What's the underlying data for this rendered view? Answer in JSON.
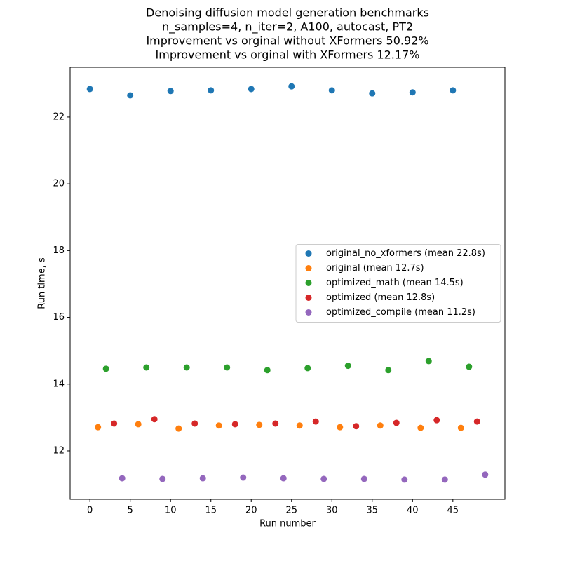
{
  "chart_data": {
    "type": "scatter",
    "title": [
      "Denoising diffusion model generation benchmarks",
      "n_samples=4, n_iter=2, A100, autocast, PT2",
      "Improvement vs orginal without XFormers 50.92%",
      "Improvement vs orginal with XFormers 12.17%"
    ],
    "x_label": "Run number",
    "y_label": "Run time, s",
    "xlim": [
      -2.45,
      51.45
    ],
    "ylim": [
      10.55,
      23.49
    ],
    "xticks": [
      0,
      5,
      10,
      15,
      20,
      25,
      30,
      35,
      40,
      45
    ],
    "yticks": [
      12,
      14,
      16,
      18,
      20,
      22
    ],
    "legend": "center right",
    "series": [
      {
        "name": "original_no_xformers (mean 22.8s)",
        "color": "#1f77b4",
        "x": [
          0,
          5,
          10,
          15,
          20,
          25,
          30,
          35,
          40,
          45
        ],
        "values": [
          22.84,
          22.65,
          22.78,
          22.8,
          22.84,
          22.92,
          22.8,
          22.71,
          22.74,
          22.8
        ]
      },
      {
        "name": "original (mean 12.7s)",
        "color": "#ff7f0e",
        "x": [
          1,
          6,
          11,
          16,
          21,
          26,
          31,
          36,
          41,
          46
        ],
        "values": [
          12.71,
          12.8,
          12.67,
          12.76,
          12.78,
          12.76,
          12.71,
          12.76,
          12.69,
          12.69
        ]
      },
      {
        "name": "optimized_math (mean 14.5s)",
        "color": "#2ca02c",
        "x": [
          2,
          7,
          12,
          17,
          22,
          27,
          32,
          37,
          42,
          47
        ],
        "values": [
          14.46,
          14.5,
          14.5,
          14.5,
          14.42,
          14.48,
          14.55,
          14.42,
          14.69,
          14.52
        ]
      },
      {
        "name": "optimized (mean 12.8s)",
        "color": "#d62728",
        "x": [
          3,
          8,
          13,
          18,
          23,
          28,
          33,
          38,
          43,
          48
        ],
        "values": [
          12.82,
          12.95,
          12.82,
          12.8,
          12.82,
          12.88,
          12.74,
          12.84,
          12.92,
          12.88
        ]
      },
      {
        "name": "optimized_compile (mean 11.2s)",
        "color": "#9467bd",
        "x": [
          4,
          9,
          14,
          19,
          24,
          29,
          34,
          39,
          44,
          49
        ],
        "values": [
          11.18,
          11.16,
          11.18,
          11.2,
          11.18,
          11.16,
          11.16,
          11.14,
          11.14,
          11.29
        ]
      }
    ]
  }
}
